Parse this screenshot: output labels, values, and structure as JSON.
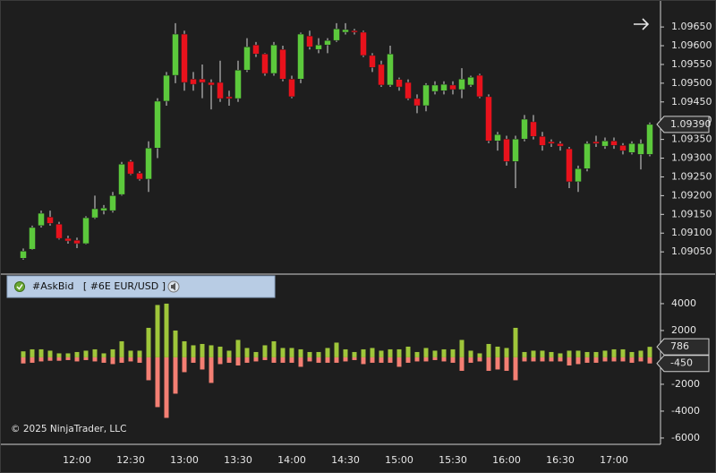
{
  "chart_data": [
    {
      "type": "candlestick",
      "categories": [
        null,
        null,
        null,
        null,
        null,
        null,
        "12:00",
        null,
        null,
        null,
        null,
        null,
        "12:30",
        null,
        null,
        null,
        null,
        null,
        "13:00",
        null,
        null,
        null,
        null,
        null,
        "13:30",
        null,
        null,
        null,
        null,
        null,
        "14:00",
        null,
        null,
        null,
        null,
        null,
        "14:30",
        null,
        null,
        null,
        null,
        null,
        "15:00",
        null,
        null,
        null,
        null,
        null,
        "15:30",
        null,
        null,
        null,
        null,
        null,
        "16:00",
        null,
        null,
        null,
        null,
        null,
        "16:30",
        null,
        null,
        null,
        null,
        null,
        "17:00",
        null,
        null,
        null,
        null
      ],
      "open": [
        1.09033,
        1.09057,
        1.0912,
        1.09143,
        1.09124,
        1.09086,
        1.09081,
        1.09072,
        1.09141,
        1.0916,
        1.0916,
        1.09203,
        1.09291,
        1.0926,
        1.09244,
        1.09327,
        1.09452,
        1.09521,
        1.09631,
        1.09511,
        1.09511,
        1.09502,
        1.09502,
        1.09464,
        1.09459,
        1.09535,
        1.09602,
        1.09578,
        1.09526,
        1.0959,
        1.09511,
        1.09511,
        1.09626,
        1.0959,
        1.09602,
        1.09614,
        1.09636,
        1.0964,
        1.09636,
        1.09574,
        1.0955,
        1.09495,
        1.0951,
        1.09502,
        1.09459,
        1.0944,
        1.09478,
        1.0948,
        1.09495,
        1.09483,
        1.09495,
        1.09521,
        1.09464,
        1.09346,
        1.09351,
        1.09291,
        1.09351,
        1.09397,
        1.09358,
        1.09344,
        1.09339,
        1.09325,
        1.09237,
        1.09272,
        1.09344,
        1.09332,
        1.09346,
        1.09334,
        1.09315,
        1.0931,
        1.0931
      ],
      "high": [
        1.09059,
        1.0912,
        1.0916,
        1.0916,
        1.0913,
        1.09093,
        1.09088,
        1.09145,
        1.092,
        1.09175,
        1.0921,
        1.0929,
        1.09295,
        1.09265,
        1.09345,
        1.0946,
        1.0953,
        1.0966,
        1.0964,
        1.0953,
        1.0955,
        1.0951,
        1.0956,
        1.0948,
        1.0956,
        1.0962,
        1.0961,
        1.0958,
        1.0961,
        1.096,
        1.0952,
        1.09635,
        1.0964,
        1.0962,
        1.0962,
        1.0966,
        1.0966,
        1.09645,
        1.0964,
        1.0958,
        1.0956,
        1.096,
        1.09515,
        1.0951,
        1.0947,
        1.095,
        1.09505,
        1.09505,
        1.09505,
        1.0954,
        1.0952,
        1.09525,
        1.0947,
        1.0937,
        1.0936,
        1.0936,
        1.09415,
        1.09415,
        1.0937,
        1.0935,
        1.09345,
        1.0933,
        1.0928,
        1.09345,
        1.0936,
        1.09355,
        1.09355,
        1.0934,
        1.09345,
        1.0935,
        1.09395
      ],
      "low": [
        1.09029,
        1.09055,
        1.09115,
        1.0912,
        1.09083,
        1.09072,
        1.0906,
        1.0907,
        1.09138,
        1.0915,
        1.09155,
        1.092,
        1.09255,
        1.0924,
        1.0921,
        1.093,
        1.0944,
        1.095,
        1.0948,
        1.0948,
        1.0946,
        1.0943,
        1.0945,
        1.0944,
        1.0945,
        1.0953,
        1.0957,
        1.0952,
        1.0952,
        1.09505,
        1.0946,
        1.095,
        1.0959,
        1.0958,
        1.0958,
        1.0961,
        1.0963,
        1.0963,
        1.0957,
        1.0953,
        1.0949,
        1.0949,
        1.0948,
        1.09455,
        1.0942,
        1.09425,
        1.0947,
        1.0947,
        1.0947,
        1.0946,
        1.0949,
        1.0946,
        1.0934,
        1.0932,
        1.0928,
        1.0922,
        1.09345,
        1.0935,
        1.0932,
        1.0933,
        1.0932,
        1.0922,
        1.0921,
        1.09265,
        1.0933,
        1.09325,
        1.09325,
        1.0931,
        1.0931,
        1.0927,
        1.09305
      ],
      "close": [
        1.09052,
        1.09115,
        1.09153,
        1.09126,
        1.09086,
        1.09079,
        1.09072,
        1.09141,
        1.09165,
        1.09167,
        1.092,
        1.09284,
        1.09258,
        1.09244,
        1.09327,
        1.09452,
        1.09521,
        1.09631,
        1.09502,
        1.09497,
        1.09502,
        1.09495,
        1.09459,
        1.09459,
        1.09535,
        1.09597,
        1.09578,
        1.09526,
        1.09602,
        1.09511,
        1.09464,
        1.09631,
        1.09597,
        1.09602,
        1.09614,
        1.09645,
        1.09643,
        1.09636,
        1.09574,
        1.09542,
        1.09495,
        1.09578,
        1.0949,
        1.09459,
        1.0944,
        1.09495,
        1.09495,
        1.09497,
        1.09483,
        1.09511,
        1.09516,
        1.09464,
        1.09346,
        1.09363,
        1.09291,
        1.09351,
        1.09404,
        1.09358,
        1.09334,
        1.09339,
        1.09332,
        1.09237,
        1.09272,
        1.09339,
        1.09339,
        1.09346,
        1.09334,
        1.0932,
        1.09339,
        1.09339,
        1.0939
      ],
      "last_label": "1.09390",
      "up_color": "#5cc93c",
      "down_color": "#e8121c",
      "ylim": [
        1.08993,
        1.0971
      ],
      "yticks": [
        {
          "value": 1.0905,
          "label": "1.09050"
        },
        {
          "value": 1.091,
          "label": "1.09100"
        },
        {
          "value": 1.0915,
          "label": "1.09150"
        },
        {
          "value": 1.092,
          "label": "1.09200"
        },
        {
          "value": 1.0925,
          "label": "1.09250"
        },
        {
          "value": 1.093,
          "label": "1.09300"
        },
        {
          "value": 1.0935,
          "label": "1.09350"
        },
        {
          "value": 1.094,
          "label": "1.09400"
        },
        {
          "value": 1.0945,
          "label": "1.09450"
        },
        {
          "value": 1.095,
          "label": "1.09500"
        },
        {
          "value": 1.0955,
          "label": "1.09550"
        },
        {
          "value": 1.096,
          "label": "1.09600"
        },
        {
          "value": 1.0965,
          "label": "1.09650"
        }
      ],
      "grid": false
    },
    {
      "type": "bar",
      "title": "#AskBid   [ #6E EUR/USD ]",
      "series": [
        {
          "color": "#9fc63a",
          "values": [
            450,
            600,
            600,
            500,
            300,
            300,
            400,
            500,
            600,
            300,
            600,
            1200,
            500,
            500,
            2200,
            3900,
            4000,
            2000,
            1200,
            900,
            1000,
            900,
            800,
            500,
            1300,
            700,
            400,
            900,
            1200,
            700,
            700,
            600,
            400,
            400,
            700,
            1100,
            600,
            400,
            600,
            700,
            500,
            600,
            600,
            800,
            400,
            700,
            500,
            600,
            600,
            1300,
            500,
            300,
            1000,
            800,
            700,
            2200,
            400,
            500,
            500,
            400,
            300,
            500,
            500,
            400,
            400,
            500,
            600,
            600,
            400,
            500,
            786
          ]
        },
        {
          "color": "#f47f73",
          "values": [
            -450,
            -400,
            -300,
            -250,
            -250,
            -200,
            -300,
            -200,
            -300,
            -400,
            -500,
            -400,
            -300,
            -400,
            -1700,
            -3700,
            -4500,
            -2700,
            -1100,
            -400,
            -900,
            -1900,
            -500,
            -400,
            -600,
            -400,
            -300,
            -200,
            -400,
            -400,
            -400,
            -700,
            -300,
            -400,
            -400,
            -400,
            -300,
            -200,
            -500,
            -400,
            -400,
            -400,
            -700,
            -400,
            -300,
            -300,
            -200,
            -300,
            -400,
            -1000,
            -400,
            -300,
            -1000,
            -900,
            -1000,
            -1700,
            -300,
            -300,
            -300,
            -300,
            -300,
            -600,
            -500,
            -400,
            -400,
            -300,
            -300,
            -300,
            -400,
            -300,
            -450
          ]
        }
      ],
      "ylim": [
        -6470,
        6130
      ],
      "yticks": [
        4000,
        2000,
        -2000,
        -4000,
        -6000
      ],
      "grid": false
    }
  ],
  "copyright": "© 2025 NinjaTrader, LLC"
}
